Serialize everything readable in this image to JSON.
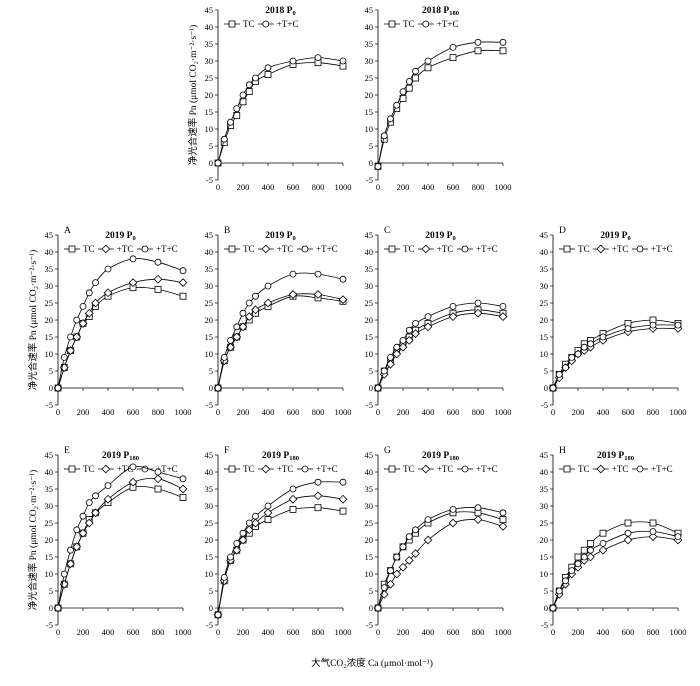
{
  "figure": {
    "ylabel": "净光合速率 Pn (μmol CO₂·m⁻²·s⁻¹)",
    "xlabel": "大气CO₂浓度 Ca (μmol·mol⁻¹)",
    "legend_labels": [
      "TC",
      "+TC",
      "+T+C"
    ]
  },
  "chart_data": [
    {
      "id": "2018-P0",
      "type": "line",
      "label": "",
      "title": "2018 P0",
      "x": [
        0,
        50,
        100,
        150,
        200,
        250,
        300,
        400,
        600,
        800,
        1000
      ],
      "xlim": [
        0,
        1000
      ],
      "ylim": [
        -5,
        45
      ],
      "series": [
        {
          "name": "TC",
          "marker": "square",
          "values": [
            0,
            6,
            11,
            14,
            18,
            21,
            24,
            26,
            29,
            29.5,
            28.5
          ]
        },
        {
          "name": "+T+C",
          "marker": "circle",
          "values": [
            0,
            7,
            12,
            16,
            20,
            23,
            25,
            28,
            30,
            31,
            30
          ]
        }
      ]
    },
    {
      "id": "2018-P180",
      "type": "line",
      "label": "",
      "title": "2018 P180",
      "x": [
        0,
        50,
        100,
        150,
        200,
        250,
        300,
        400,
        600,
        800,
        1000
      ],
      "xlim": [
        0,
        1000
      ],
      "ylim": [
        -5,
        45
      ],
      "series": [
        {
          "name": "TC",
          "marker": "square",
          "values": [
            -1,
            7,
            12,
            16,
            19,
            22,
            25,
            28,
            31,
            33,
            33
          ]
        },
        {
          "name": "+T+C",
          "marker": "circle",
          "values": [
            -1,
            8,
            13,
            17,
            21,
            24,
            27,
            30,
            34,
            35.5,
            35.5
          ]
        }
      ]
    },
    {
      "id": "2019-P0-A",
      "type": "line",
      "label": "A",
      "title": "2019 P0",
      "x": [
        0,
        50,
        100,
        150,
        200,
        250,
        300,
        400,
        600,
        800,
        1000
      ],
      "xlim": [
        0,
        1000
      ],
      "ylim": [
        -5,
        45
      ],
      "series": [
        {
          "name": "TC",
          "marker": "square",
          "values": [
            0,
            6,
            11,
            15,
            19,
            21,
            24,
            27,
            29.5,
            29,
            27
          ]
        },
        {
          "name": "+TC",
          "marker": "diamond",
          "values": [
            0,
            6,
            11,
            15,
            19,
            22,
            25,
            28,
            31,
            32,
            31
          ]
        },
        {
          "name": "+T+C",
          "marker": "circle",
          "values": [
            0,
            9,
            15,
            20,
            24,
            28,
            31,
            35,
            38,
            37,
            34.5
          ]
        }
      ]
    },
    {
      "id": "2019-P0-B",
      "type": "line",
      "label": "B",
      "title": "2019 P0",
      "x": [
        0,
        50,
        100,
        150,
        200,
        250,
        300,
        400,
        600,
        800,
        1000
      ],
      "xlim": [
        0,
        1000
      ],
      "ylim": [
        -5,
        45
      ],
      "series": [
        {
          "name": "TC",
          "marker": "square",
          "values": [
            0,
            8,
            12,
            15,
            18,
            20,
            22,
            24,
            27,
            26.5,
            25.5
          ]
        },
        {
          "name": "+TC",
          "marker": "diamond",
          "values": [
            0,
            8,
            12,
            15,
            18,
            21,
            23,
            25,
            27.5,
            27.5,
            26
          ]
        },
        {
          "name": "+T+C",
          "marker": "circle",
          "values": [
            0,
            9,
            14,
            18,
            22,
            25,
            27,
            30,
            33.5,
            33.5,
            32
          ]
        }
      ]
    },
    {
      "id": "2019-P0-C",
      "type": "line",
      "label": "C",
      "title": "2019 P0",
      "x": [
        0,
        50,
        100,
        150,
        200,
        250,
        300,
        400,
        600,
        800,
        1000
      ],
      "xlim": [
        0,
        1000
      ],
      "ylim": [
        -5,
        45
      ],
      "series": [
        {
          "name": "TC",
          "marker": "square",
          "values": [
            0,
            5,
            8,
            11,
            13,
            15,
            17,
            19,
            22,
            23,
            22
          ]
        },
        {
          "name": "+TC",
          "marker": "diamond",
          "values": [
            0,
            4,
            7,
            10,
            12,
            14,
            16,
            18,
            21,
            22,
            21
          ]
        },
        {
          "name": "+T+C",
          "marker": "circle",
          "values": [
            0,
            5,
            9,
            12,
            14,
            17,
            19,
            21,
            24,
            25,
            24
          ]
        }
      ]
    },
    {
      "id": "2019-P0-D",
      "type": "line",
      "label": "D",
      "title": "2019 P0",
      "x": [
        0,
        50,
        100,
        150,
        200,
        250,
        300,
        400,
        600,
        800,
        1000
      ],
      "xlim": [
        0,
        1000
      ],
      "ylim": [
        -5,
        45
      ],
      "series": [
        {
          "name": "TC",
          "marker": "square",
          "values": [
            0,
            4,
            7,
            9,
            11,
            13,
            14,
            16,
            19,
            20,
            19
          ]
        },
        {
          "name": "+TC",
          "marker": "diamond",
          "values": [
            0,
            3,
            6,
            8,
            10,
            11,
            12,
            14,
            16.5,
            17.5,
            17.5
          ]
        },
        {
          "name": "+T+C",
          "marker": "circle",
          "values": [
            0,
            4,
            6,
            9,
            10,
            12,
            13,
            15,
            17.5,
            18.5,
            18.5
          ]
        }
      ]
    },
    {
      "id": "2019-P180-E",
      "type": "line",
      "label": "E",
      "title": "2019 P180",
      "x": [
        0,
        50,
        100,
        150,
        200,
        250,
        300,
        400,
        600,
        800,
        1000
      ],
      "xlim": [
        0,
        1000
      ],
      "ylim": [
        -5,
        45
      ],
      "series": [
        {
          "name": "TC",
          "marker": "square",
          "values": [
            0,
            7,
            13,
            18,
            22,
            26,
            28,
            31,
            35.5,
            35,
            32.5
          ]
        },
        {
          "name": "+TC",
          "marker": "diamond",
          "values": [
            0,
            7,
            13,
            18,
            22,
            25,
            28,
            32,
            37,
            38,
            35
          ]
        },
        {
          "name": "+T+C",
          "marker": "circle",
          "values": [
            0,
            10,
            17,
            23,
            27,
            31,
            33,
            36,
            41.5,
            40,
            38
          ]
        }
      ]
    },
    {
      "id": "2019-P180-F",
      "type": "line",
      "label": "F",
      "title": "2019 P180",
      "x": [
        0,
        50,
        100,
        150,
        200,
        250,
        300,
        400,
        600,
        800,
        1000
      ],
      "xlim": [
        0,
        1000
      ],
      "ylim": [
        -5,
        45
      ],
      "series": [
        {
          "name": "TC",
          "marker": "square",
          "values": [
            -2,
            8,
            14,
            17,
            20,
            22,
            24,
            26,
            29,
            29.5,
            28.5
          ]
        },
        {
          "name": "+TC",
          "marker": "diamond",
          "values": [
            -2,
            8,
            14,
            17,
            20,
            23,
            25,
            28,
            32,
            33,
            32
          ]
        },
        {
          "name": "+T+C",
          "marker": "circle",
          "values": [
            -2,
            9,
            15,
            19,
            22,
            25,
            27,
            30,
            35,
            37,
            37
          ]
        }
      ]
    },
    {
      "id": "2019-P180-G",
      "type": "line",
      "label": "G",
      "title": "2019 P180",
      "x": [
        0,
        50,
        100,
        150,
        200,
        250,
        300,
        400,
        600,
        800,
        1000
      ],
      "xlim": [
        0,
        1000
      ],
      "ylim": [
        -5,
        45
      ],
      "series": [
        {
          "name": "TC",
          "marker": "square",
          "values": [
            0,
            7,
            11,
            15,
            18,
            20,
            22,
            25,
            28,
            28,
            26
          ]
        },
        {
          "name": "+TC",
          "marker": "diamond",
          "values": [
            0,
            4,
            7,
            10,
            12,
            14,
            16,
            20,
            25,
            26,
            24
          ]
        },
        {
          "name": "+T+C",
          "marker": "circle",
          "values": [
            0,
            6,
            11,
            15,
            18,
            21,
            23,
            26,
            29,
            29.5,
            28
          ]
        }
      ]
    },
    {
      "id": "2019-P180-H",
      "type": "line",
      "label": "H",
      "title": "2019 P180",
      "x": [
        0,
        50,
        100,
        150,
        200,
        250,
        300,
        400,
        600,
        800,
        1000
      ],
      "xlim": [
        0,
        1000
      ],
      "ylim": [
        -5,
        45
      ],
      "series": [
        {
          "name": "TC",
          "marker": "square",
          "values": [
            0,
            5,
            9,
            12,
            15,
            17,
            19,
            22,
            25,
            25,
            22
          ]
        },
        {
          "name": "+TC",
          "marker": "diamond",
          "values": [
            0,
            4,
            7,
            10,
            12,
            14,
            15,
            17,
            20,
            21,
            20
          ]
        },
        {
          "name": "+T+C",
          "marker": "circle",
          "values": [
            0,
            5,
            8,
            11,
            13,
            15,
            17,
            19,
            22,
            22.5,
            21
          ]
        }
      ]
    }
  ]
}
